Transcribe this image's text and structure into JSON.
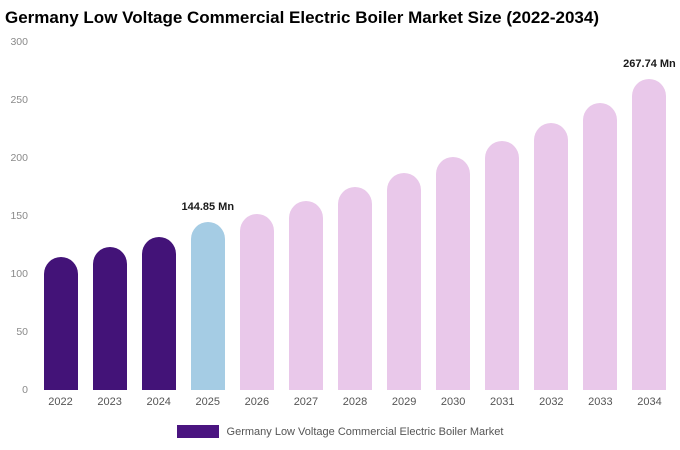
{
  "title": "Germany Low Voltage Commercial Electric Boiler Market Size (2022-2034)",
  "legend": {
    "label": "Germany Low Voltage Commercial Electric Boiler Market",
    "swatch_color": "#4a1480"
  },
  "colors": {
    "dark_purple": "#431378",
    "light_blue": "#a5cce4",
    "pink": "#e9c8ea",
    "axis_text": "#8a8a8a"
  },
  "chart_data": {
    "type": "bar",
    "title": "Germany Low Voltage Commercial Electric Boiler Market Size (2022-2034)",
    "xlabel": "",
    "ylabel": "",
    "ylim": [
      0,
      300
    ],
    "yticks": [
      0,
      50,
      100,
      150,
      200,
      250,
      300
    ],
    "grid": false,
    "legend_position": "bottom",
    "categories": [
      "2022",
      "2023",
      "2024",
      "2025",
      "2026",
      "2027",
      "2028",
      "2029",
      "2030",
      "2031",
      "2032",
      "2033",
      "2034"
    ],
    "values": [
      115,
      123,
      132,
      144.85,
      152,
      163,
      175,
      187,
      201,
      215,
      230,
      247,
      267.74
    ],
    "bar_color_keys": [
      "dark_purple",
      "dark_purple",
      "dark_purple",
      "light_blue",
      "pink",
      "pink",
      "pink",
      "pink",
      "pink",
      "pink",
      "pink",
      "pink",
      "pink"
    ],
    "annotations": [
      {
        "category": "2025",
        "text": "144.85 Mn"
      },
      {
        "category": "2034",
        "text": "267.74 Mn"
      }
    ]
  }
}
